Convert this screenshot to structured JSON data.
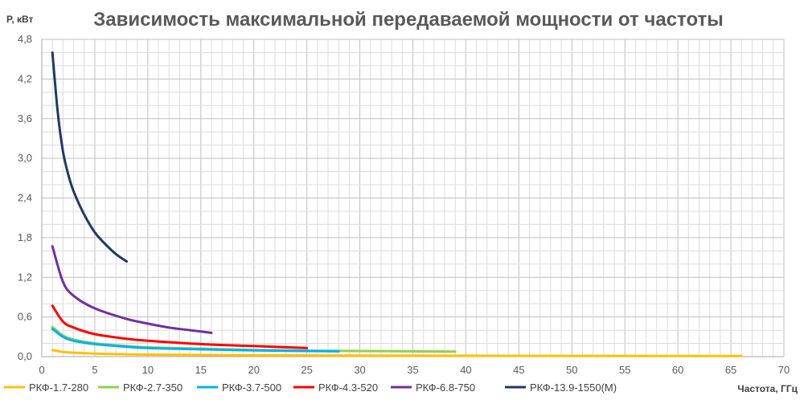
{
  "chart_data": {
    "type": "line",
    "title": "Зависимость максимальной передаваемой мощности от частоты",
    "ylabel": "Р, кВт",
    "xlabel": "Частота, ГГц",
    "xlim": [
      0,
      70
    ],
    "ylim": [
      0,
      4.8
    ],
    "xticks": [
      "0",
      "5",
      "10",
      "15",
      "20",
      "25",
      "30",
      "35",
      "40",
      "45",
      "50",
      "55",
      "60",
      "65",
      "70"
    ],
    "yticks": [
      "0,0",
      "0,6",
      "1,2",
      "1,8",
      "2,4",
      "3,0",
      "3,6",
      "4,2",
      "4,8"
    ],
    "grid": true,
    "legend_position": "bottom",
    "series": [
      {
        "name": "РКФ-1.7-280",
        "color": "#FFC000",
        "x": [
          1,
          2,
          3,
          5,
          8,
          10,
          15,
          20,
          30,
          40,
          50,
          60,
          66
        ],
        "y": [
          0.1,
          0.07,
          0.06,
          0.045,
          0.035,
          0.03,
          0.025,
          0.02,
          0.016,
          0.013,
          0.011,
          0.01,
          0.009
        ]
      },
      {
        "name": "РКФ-2.7-350",
        "color": "#92D050",
        "x": [
          1,
          2,
          3,
          5,
          8,
          10,
          15,
          20,
          25,
          30,
          35,
          39
        ],
        "y": [
          0.45,
          0.32,
          0.26,
          0.2,
          0.16,
          0.14,
          0.12,
          0.1,
          0.09,
          0.085,
          0.08,
          0.075
        ]
      },
      {
        "name": "РКФ-3.7-500",
        "color": "#00B0F0",
        "x": [
          1,
          2,
          3,
          5,
          8,
          10,
          15,
          20,
          25,
          28
        ],
        "y": [
          0.42,
          0.3,
          0.24,
          0.19,
          0.15,
          0.13,
          0.11,
          0.095,
          0.085,
          0.08
        ]
      },
      {
        "name": "РКФ-4.3-520",
        "color": "#FF0000",
        "x": [
          1,
          2,
          3,
          5,
          8,
          10,
          15,
          20,
          25
        ],
        "y": [
          0.77,
          0.53,
          0.44,
          0.34,
          0.27,
          0.24,
          0.19,
          0.16,
          0.13
        ]
      },
      {
        "name": "РКФ-6.8-750",
        "color": "#7030A0",
        "x": [
          1,
          2,
          3,
          5,
          8,
          10,
          12,
          14,
          16
        ],
        "y": [
          1.67,
          1.13,
          0.92,
          0.73,
          0.57,
          0.5,
          0.44,
          0.4,
          0.36
        ]
      },
      {
        "name": "РКФ-13.9-1550(М)",
        "color": "#1F3864",
        "x": [
          1,
          1.5,
          2,
          2.5,
          3,
          4,
          5,
          6,
          7,
          8
        ],
        "y": [
          4.6,
          3.7,
          3.1,
          2.75,
          2.5,
          2.15,
          1.88,
          1.7,
          1.55,
          1.44
        ]
      }
    ]
  }
}
